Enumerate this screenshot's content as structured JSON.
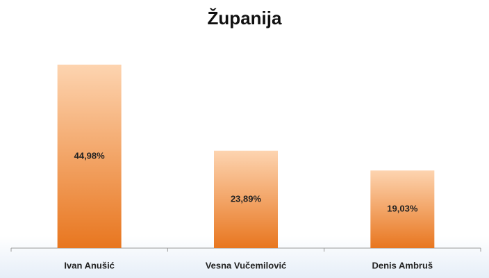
{
  "chart_data": {
    "type": "bar",
    "title": "Županija",
    "categories": [
      "Ivan Anušić",
      "Vesna Vučemilović",
      "Denis Ambruš"
    ],
    "values": [
      44.98,
      23.89,
      19.03
    ],
    "value_labels": [
      "44,98%",
      "23,89%",
      "19,03%"
    ],
    "gradient": [
      "#fdd4b0",
      "#e8761f"
    ]
  }
}
